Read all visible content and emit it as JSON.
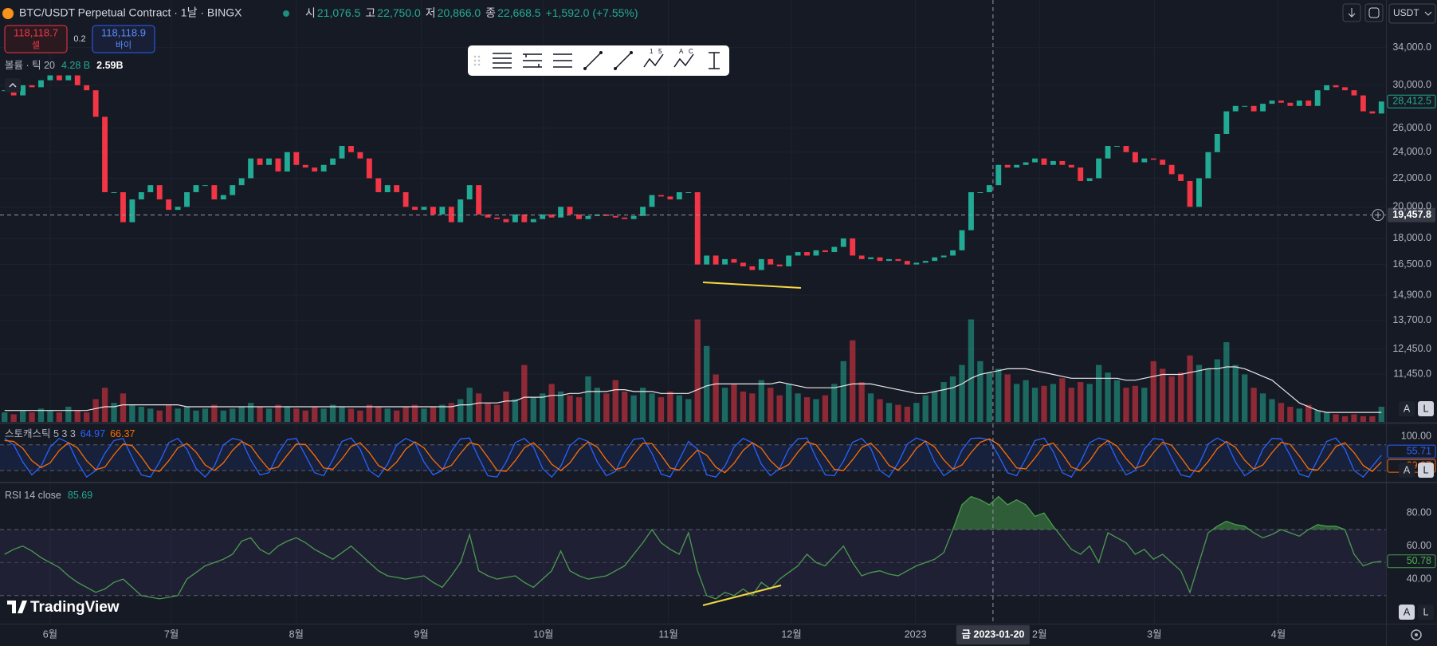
{
  "header": {
    "symbol": "BTC/USDT Perpetual Contract · 1날 · BINGX",
    "ohlc": [
      {
        "key": "시",
        "value": "21,076.5"
      },
      {
        "key": "고",
        "value": "22,750.0"
      },
      {
        "key": "저",
        "value": "20,866.0"
      },
      {
        "key": "종",
        "value": "22,668.5"
      }
    ],
    "change": "+1,592.0 (+7.55%)",
    "sell": {
      "price": "118,118.7",
      "label": "셀"
    },
    "spread": "0.2",
    "buy": {
      "price": "118,118.9",
      "label": "바이"
    },
    "currency": "USDT"
  },
  "toolbar_icon_texts": [
    "1",
    "5",
    "A",
    "C"
  ],
  "scale_buttons": [
    "A",
    "L"
  ],
  "brand": "TradingView",
  "crosshair": {
    "x": 108.4,
    "price": 19457.8,
    "price_label": "19,457.8",
    "date_label": "금 2023-01-20"
  },
  "chart_data": [
    {
      "type": "candlestick",
      "log": true,
      "grid": true,
      "up_color": "#22ab94",
      "down_color": "#f23645",
      "xlim": [
        -0.5,
        151.5
      ],
      "ylim": [
        9763,
        39860
      ],
      "yticks": [
        {
          "value": 34000,
          "label": "34,000.0"
        },
        {
          "value": 30000,
          "label": "30,000.0"
        },
        {
          "value": 26000,
          "label": "26,000.0"
        },
        {
          "value": 24000,
          "label": "24,000.0"
        },
        {
          "value": 22000,
          "label": "22,000.0"
        },
        {
          "value": 20000,
          "label": "20,000.0"
        },
        {
          "value": 18000,
          "label": "18,000.0"
        },
        {
          "value": 16500,
          "label": "16,500.0"
        },
        {
          "value": 14900,
          "label": "14,900.0"
        },
        {
          "value": 13700,
          "label": "13,700.0"
        },
        {
          "value": 12450,
          "label": "12,450.0"
        },
        {
          "value": 11450,
          "label": "11,450.0"
        }
      ],
      "last_label": {
        "value": 28412.5,
        "label": "28,412.5"
      },
      "close": [
        29500,
        29000,
        30000,
        29800,
        30500,
        31000,
        30500,
        31000,
        30000,
        29500,
        27000,
        21000,
        21000,
        19000,
        20500,
        21000,
        21500,
        20500,
        19800,
        20000,
        21000,
        21500,
        21500,
        20500,
        20800,
        21500,
        22000,
        23500,
        23000,
        23500,
        22500,
        24000,
        23000,
        22800,
        22500,
        23000,
        23500,
        24500,
        24000,
        23500,
        22000,
        21000,
        21500,
        21000,
        20000,
        19800,
        20000,
        19500,
        20000,
        19000,
        20500,
        21500,
        19500,
        19300,
        19200,
        19000,
        19500,
        19000,
        19200,
        19500,
        19300,
        20000,
        19500,
        19200,
        19400,
        19500,
        19400,
        19300,
        19200,
        19400,
        20000,
        20800,
        20700,
        20500,
        21000,
        21000,
        16500,
        17000,
        16500,
        16800,
        16600,
        16400,
        16200,
        16800,
        16500,
        16400,
        17000,
        17200,
        17000,
        17300,
        17200,
        17500,
        18000,
        17000,
        16800,
        16900,
        16700,
        16800,
        16700,
        16500,
        16600,
        16700,
        16900,
        17000,
        17300,
        18500,
        21000,
        21000,
        21500,
        23000,
        22800,
        23000,
        23200,
        23500,
        23000,
        23300,
        23000,
        22800,
        21800,
        22000,
        23500,
        24500,
        24500,
        24000,
        23200,
        23500,
        23400,
        23000,
        22300,
        21800,
        20000,
        22000,
        24000,
        25500,
        27500,
        28000,
        28000,
        27500,
        28200,
        28500,
        28300,
        28000,
        28500,
        28000,
        29500,
        30000,
        29800,
        29500,
        29000,
        27500,
        27300,
        28412.5
      ]
    },
    {
      "type": "bar",
      "legend": "볼륨 · 틱 20",
      "legend_values": [
        "4.28 B",
        "2.59B"
      ],
      "up_color": "rgba(34,171,148,0.55)",
      "down_color": "rgba(242,54,69,0.55)",
      "ma_color": "#e8e8e8",
      "xlim": [
        -0.5,
        151.5
      ],
      "ylim": [
        0,
        5.8
      ],
      "values": [
        0.5,
        0.4,
        0.6,
        0.5,
        0.7,
        0.6,
        0.5,
        0.8,
        0.6,
        0.5,
        1.2,
        1.8,
        1.0,
        1.5,
        0.9,
        0.8,
        0.7,
        0.6,
        0.9,
        0.7,
        0.8,
        0.6,
        0.7,
        0.9,
        0.6,
        0.7,
        0.8,
        1.0,
        0.8,
        0.7,
        0.9,
        0.8,
        0.7,
        0.6,
        0.8,
        0.7,
        0.9,
        0.8,
        0.7,
        0.6,
        0.9,
        0.8,
        0.7,
        0.6,
        0.8,
        0.9,
        0.7,
        0.8,
        0.9,
        1.0,
        1.2,
        1.8,
        1.5,
        1.0,
        0.9,
        1.6,
        1.2,
        3.0,
        1.3,
        1.5,
        2.0,
        1.6,
        1.4,
        1.3,
        2.4,
        1.8,
        1.5,
        2.2,
        1.6,
        1.4,
        1.8,
        1.5,
        1.3,
        1.6,
        1.4,
        1.2,
        5.4,
        4.0,
        2.5,
        1.8,
        2.0,
        1.6,
        1.5,
        2.2,
        1.8,
        1.4,
        2.0,
        1.5,
        1.3,
        1.2,
        1.4,
        2.0,
        3.2,
        4.3,
        2.1,
        1.5,
        1.2,
        1.0,
        0.9,
        0.8,
        1.0,
        1.4,
        1.6,
        2.1,
        2.4,
        3.0,
        5.4,
        3.2,
        2.6,
        2.8,
        2.5,
        2.0,
        2.2,
        1.8,
        1.9,
        2.0,
        2.3,
        1.8,
        2.1,
        2.0,
        3.0,
        2.6,
        2.2,
        1.8,
        1.9,
        1.8,
        3.2,
        2.8,
        2.4,
        2.6,
        3.5,
        3.0,
        2.8,
        3.3,
        4.2,
        3.0,
        2.5,
        1.8,
        1.5,
        1.2,
        1.0,
        0.8,
        0.7,
        0.9,
        0.6,
        0.5,
        0.4,
        0.3,
        0.4,
        0.3,
        0.3,
        0.8
      ],
      "ma": [
        0.6,
        0.6,
        0.6,
        0.6,
        0.6,
        0.6,
        0.6,
        0.6,
        0.6,
        0.6,
        0.7,
        0.8,
        0.8,
        0.9,
        0.9,
        0.9,
        0.9,
        0.9,
        0.9,
        0.9,
        0.8,
        0.8,
        0.8,
        0.8,
        0.8,
        0.8,
        0.8,
        0.8,
        0.8,
        0.8,
        0.8,
        0.8,
        0.8,
        0.8,
        0.8,
        0.8,
        0.8,
        0.8,
        0.8,
        0.8,
        0.8,
        0.8,
        0.8,
        0.8,
        0.8,
        0.8,
        0.8,
        0.8,
        0.8,
        0.8,
        0.9,
        0.9,
        1.0,
        1.0,
        1.0,
        1.1,
        1.1,
        1.3,
        1.3,
        1.3,
        1.4,
        1.4,
        1.5,
        1.5,
        1.6,
        1.6,
        1.6,
        1.7,
        1.7,
        1.6,
        1.6,
        1.6,
        1.5,
        1.5,
        1.5,
        1.5,
        1.7,
        1.9,
        2.0,
        2.0,
        2.0,
        2.0,
        2.0,
        2.0,
        2.0,
        2.1,
        2.0,
        1.9,
        1.8,
        1.8,
        1.8,
        1.8,
        1.9,
        2.0,
        2.0,
        2.0,
        1.9,
        1.8,
        1.7,
        1.6,
        1.5,
        1.5,
        1.6,
        1.7,
        1.8,
        2.0,
        2.3,
        2.5,
        2.6,
        2.7,
        2.8,
        2.8,
        2.8,
        2.7,
        2.6,
        2.5,
        2.4,
        2.3,
        2.3,
        2.3,
        2.3,
        2.3,
        2.3,
        2.2,
        2.2,
        2.3,
        2.4,
        2.5,
        2.5,
        2.5,
        2.6,
        2.7,
        2.8,
        2.8,
        2.9,
        2.9,
        2.8,
        2.6,
        2.4,
        2.2,
        1.8,
        1.4,
        1.0,
        0.8,
        0.6,
        0.5,
        0.5,
        0.5,
        0.5,
        0.5,
        0.5,
        0.5
      ]
    },
    {
      "type": "line",
      "legend": "스토캐스틱 5 3 3",
      "band": [
        20,
        80
      ],
      "band_color": "rgba(41,98,255,0.10)",
      "xlim": [
        -0.5,
        151.5
      ],
      "ylim": [
        -6,
        128
      ],
      "yticks": [
        {
          "value": 100,
          "label": "100.00"
        }
      ],
      "series": [
        {
          "color": "#2962ff",
          "legend_value": 64.97,
          "values": [
            95,
            80,
            40,
            10,
            30,
            75,
            95,
            85,
            40,
            5,
            20,
            60,
            90,
            95,
            50,
            10,
            5,
            40,
            85,
            95,
            70,
            25,
            5,
            30,
            80,
            95,
            90,
            45,
            10,
            15,
            60,
            92,
            95,
            55,
            15,
            8,
            45,
            88,
            96,
            70,
            20,
            5,
            35,
            80,
            95,
            85,
            40,
            10,
            20,
            65,
            94,
            96,
            50,
            8,
            5,
            40,
            85,
            95,
            75,
            25,
            5,
            30,
            78,
            96,
            88,
            40,
            8,
            18,
            62,
            93,
            96,
            60,
            12,
            5,
            45,
            88,
            70,
            10,
            5,
            30,
            75,
            95,
            85,
            35,
            8,
            25,
            70,
            94,
            96,
            50,
            10,
            8,
            42,
            86,
            95,
            72,
            20,
            5,
            38,
            82,
            96,
            88,
            40,
            8,
            22,
            68,
            95,
            96,
            92,
            55,
            15,
            8,
            48,
            90,
            96,
            65,
            15,
            5,
            40,
            85,
            96,
            90,
            45,
            10,
            20,
            70,
            95,
            92,
            50,
            10,
            5,
            35,
            82,
            96,
            85,
            40,
            8,
            22,
            70,
            95,
            94,
            55,
            12,
            5,
            45,
            88,
            96,
            70,
            20,
            5,
            30,
            55.71
          ]
        },
        {
          "color": "#ff6d00",
          "legend_value": 66.37,
          "values": [
            90,
            88,
            72,
            43,
            27,
            38,
            67,
            85,
            73,
            43,
            22,
            28,
            57,
            82,
            78,
            52,
            22,
            18,
            43,
            73,
            83,
            63,
            33,
            20,
            38,
            67,
            88,
            77,
            48,
            23,
            28,
            56,
            82,
            81,
            55,
            26,
            23,
            47,
            76,
            85,
            62,
            32,
            20,
            40,
            70,
            87,
            73,
            45,
            23,
            32,
            60,
            85,
            80,
            51,
            21,
            18,
            43,
            73,
            85,
            65,
            35,
            20,
            38,
            68,
            87,
            75,
            45,
            22,
            29,
            58,
            84,
            83,
            56,
            26,
            21,
            46,
            68,
            56,
            28,
            15,
            37,
            67,
            85,
            72,
            43,
            23,
            34,
            63,
            87,
            80,
            52,
            23,
            20,
            45,
            74,
            84,
            62,
            32,
            21,
            42,
            72,
            89,
            75,
            45,
            23,
            33,
            62,
            86,
            94,
            81,
            54,
            26,
            24,
            49,
            78,
            84,
            59,
            28,
            20,
            43,
            74,
            90,
            77,
            48,
            25,
            33,
            62,
            86,
            79,
            51,
            22,
            17,
            41,
            71,
            88,
            74,
            44,
            23,
            33,
            62,
            86,
            81,
            54,
            24,
            21,
            46,
            76,
            85,
            62,
            32,
            18,
            39.97
          ]
        }
      ]
    },
    {
      "type": "line",
      "legend": "RSI 14 close",
      "legend_value": 85.69,
      "color": "#4a9c4e",
      "band": [
        30,
        70
      ],
      "midline": 50,
      "band_color": "rgba(126,87,194,0.10)",
      "overbought_fill": "rgba(76,175,80,0.45)",
      "xlim": [
        -0.5,
        151.5
      ],
      "ylim": [
        13,
        98
      ],
      "yticks": [
        {
          "value": 40,
          "label": "40.00"
        },
        {
          "value": 60,
          "label": "60.00"
        },
        {
          "value": 80,
          "label": "80.00"
        }
      ],
      "xticks": [
        {
          "value": 5.0,
          "label": "6월"
        },
        {
          "value": 18.3,
          "label": "7월"
        },
        {
          "value": 32.0,
          "label": "8월"
        },
        {
          "value": 45.7,
          "label": "9월"
        },
        {
          "value": 59.1,
          "label": "10월"
        },
        {
          "value": 72.8,
          "label": "11월"
        },
        {
          "value": 86.3,
          "label": "12월"
        },
        {
          "value": 99.9,
          "label": "2023"
        },
        {
          "value": 113.5,
          "label": "2월"
        },
        {
          "value": 126.1,
          "label": "3월"
        },
        {
          "value": 139.7,
          "label": "4월"
        }
      ],
      "values": [
        55,
        58,
        60,
        57,
        53,
        50,
        47,
        42,
        38,
        35,
        32,
        34,
        38,
        40,
        35,
        30,
        29,
        28,
        29,
        30,
        40,
        44,
        48,
        50,
        52,
        55,
        63,
        65,
        58,
        55,
        60,
        63,
        65,
        62,
        58,
        55,
        52,
        56,
        60,
        55,
        50,
        45,
        42,
        41,
        40,
        41,
        42,
        38,
        35,
        42,
        50,
        67,
        45,
        42,
        40,
        41,
        42,
        38,
        35,
        40,
        45,
        57,
        45,
        42,
        40,
        41,
        42,
        45,
        48,
        55,
        62,
        70,
        62,
        58,
        55,
        68,
        45,
        30,
        28,
        32,
        30,
        34,
        30,
        38,
        34,
        40,
        44,
        48,
        55,
        50,
        48,
        54,
        60,
        50,
        42,
        44,
        45,
        43,
        42,
        45,
        48,
        50,
        52,
        56,
        70,
        85,
        90,
        88,
        85,
        90,
        85,
        88,
        85,
        78,
        80,
        72,
        65,
        58,
        55,
        60,
        50,
        68,
        65,
        62,
        55,
        58,
        52,
        55,
        50,
        45,
        32,
        50,
        68,
        72,
        75,
        73,
        72,
        68,
        65,
        67,
        70,
        68,
        66,
        70,
        73,
        72,
        72,
        70,
        55,
        48,
        50,
        50.78
      ]
    }
  ]
}
